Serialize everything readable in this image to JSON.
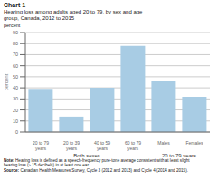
{
  "chart_data": {
    "type": "bar",
    "title": "Chart 1",
    "subtitle": [
      "Hearing loss among adults aged 20 to 79, by sex and age",
      "group, Canada, 2012 to 2015"
    ],
    "ylabel": "percent",
    "categories": [
      "20 to 79\nyears",
      "20 to 39\nyears",
      "40 to 59\nyears",
      "60 to 79\nyears",
      "Males",
      "Females"
    ],
    "groups": [
      "Both sexes",
      "Both sexes",
      "Both sexes",
      "Both sexes",
      "20 to 79 years",
      "20 to 79 years"
    ],
    "values": [
      39,
      14,
      40,
      78,
      46,
      32
    ],
    "color": "#a8cce4",
    "ylim": [
      0,
      90
    ],
    "yticks": [
      0,
      10,
      20,
      30,
      40,
      50,
      60,
      70,
      80,
      90
    ],
    "grid": true,
    "annotations": [
      {
        "bold": "Note:",
        "text": " Hearing loss is defined as a speech-frequency pure-tone average consistent with at least slight"
      },
      {
        "text": "hearing loss (≥ 15 decibels) in at least one ear."
      },
      {
        "bold": "Source:",
        "text": " Canadian Health Measures Survey, Cycle 3 (2012 and 2013) and Cycle 4 (2014 and 2015)."
      }
    ]
  }
}
